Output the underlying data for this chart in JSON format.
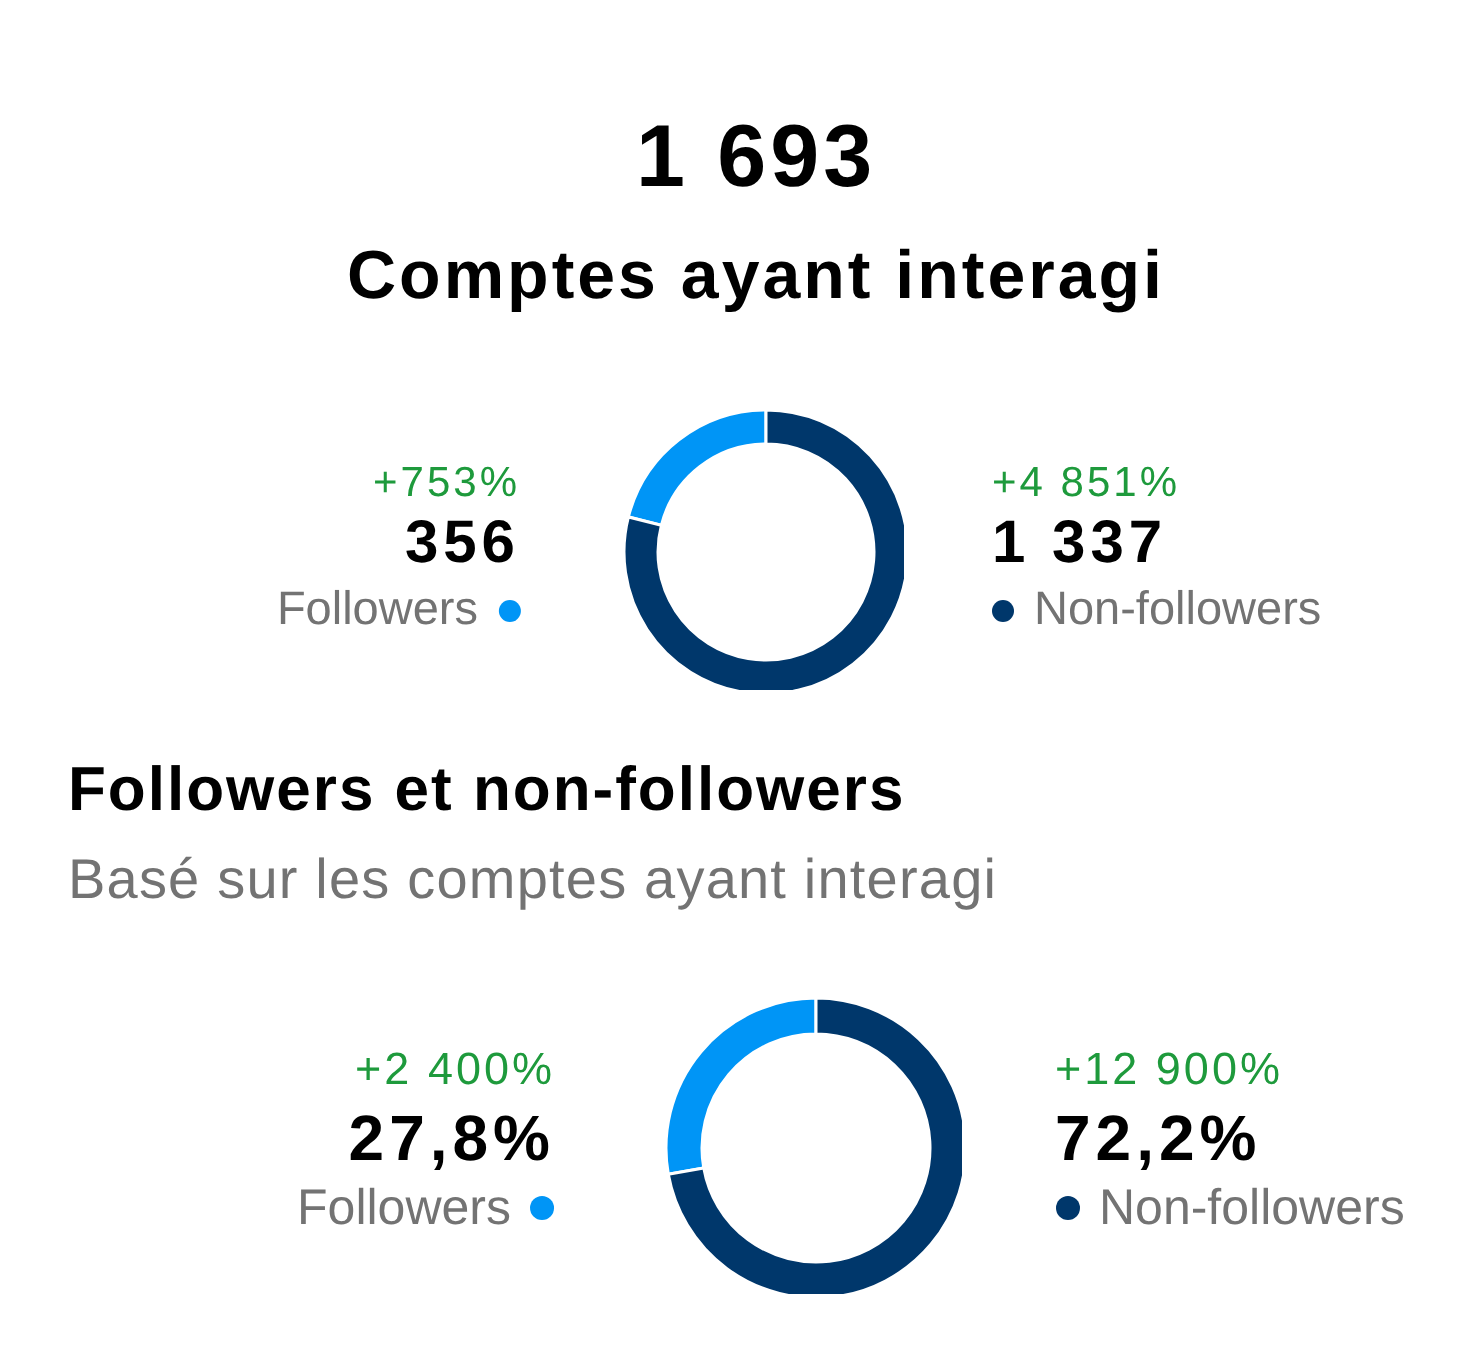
{
  "chart_data": [
    {
      "type": "donut",
      "title": "1 693",
      "subtitle": "Comptes ayant interagi",
      "categories": [
        "Followers",
        "Non-followers"
      ],
      "values": [
        356,
        1337
      ],
      "colors": [
        "#0095f6",
        "#00376b"
      ],
      "value_labels": [
        "356",
        "1 337"
      ],
      "annotations": [
        "+753%",
        "+4 851%"
      ]
    },
    {
      "type": "donut",
      "title": "Followers et non-followers",
      "subtitle": "Basé sur les comptes ayant interagi",
      "categories": [
        "Followers",
        "Non-followers"
      ],
      "values": [
        27.8,
        72.2
      ],
      "colors": [
        "#0095f6",
        "#00376b"
      ],
      "value_labels": [
        "27,8%",
        "72,2%"
      ],
      "annotations": [
        "+2 400%",
        "+12 900%"
      ]
    }
  ]
}
